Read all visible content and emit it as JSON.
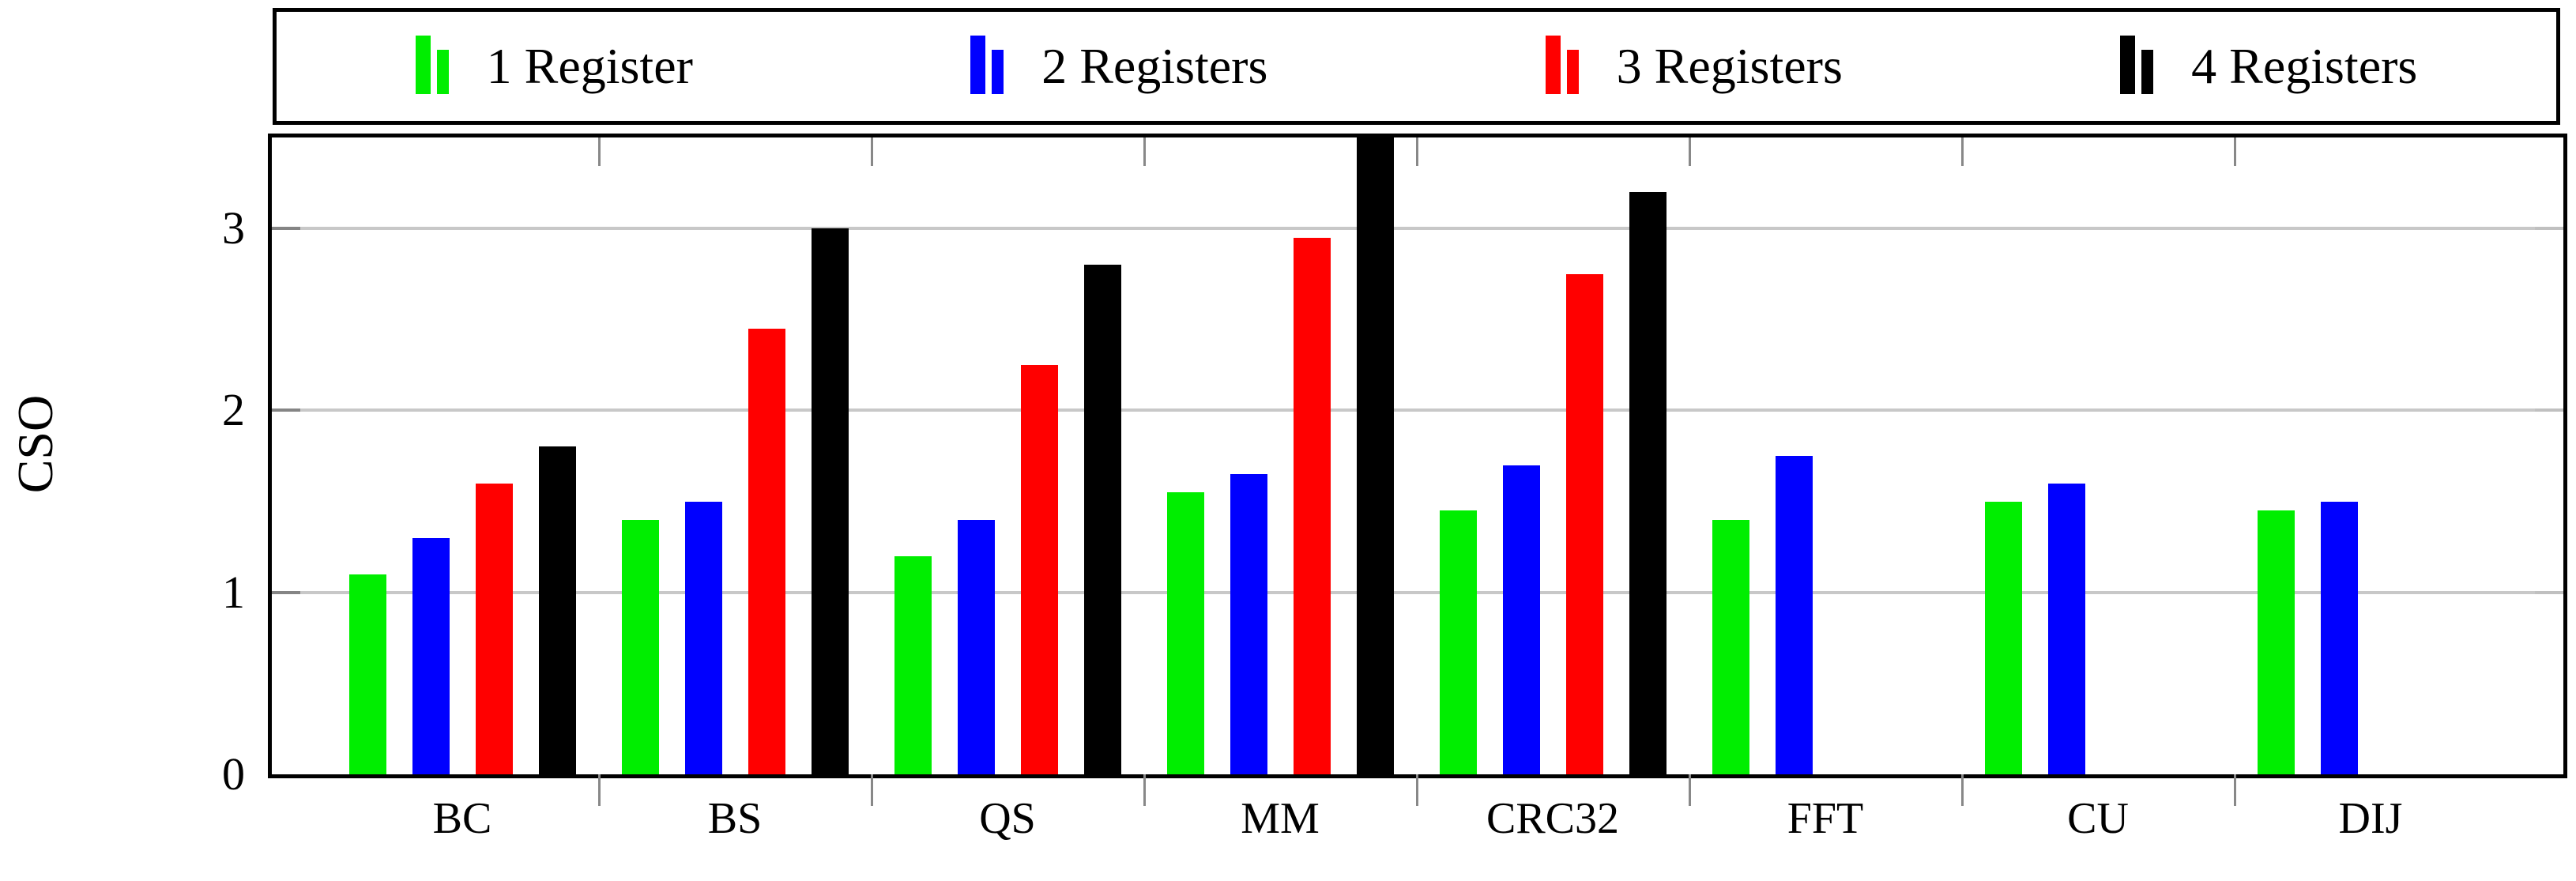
{
  "chart_data": {
    "type": "bar",
    "title": "",
    "ylabel": "CSO",
    "xlabel": "",
    "categories": [
      "BC",
      "BS",
      "QS",
      "MM",
      "CRC32",
      "FFT",
      "CU",
      "DIJ"
    ],
    "series": [
      {
        "name": "1 Register",
        "color": "#00ee00",
        "values": [
          1.1,
          1.4,
          1.2,
          1.55,
          1.45,
          1.4,
          1.5,
          1.45
        ]
      },
      {
        "name": "2 Registers",
        "color": "#0000ff",
        "values": [
          1.3,
          1.5,
          1.4,
          1.65,
          1.7,
          1.75,
          1.6,
          1.5
        ]
      },
      {
        "name": "3 Registers",
        "color": "#ff0000",
        "values": [
          1.6,
          2.45,
          2.25,
          2.95,
          2.75,
          null,
          null,
          null
        ]
      },
      {
        "name": "4 Registers",
        "color": "#000000",
        "values": [
          1.8,
          3.0,
          2.8,
          3.5,
          3.2,
          null,
          null,
          null
        ]
      }
    ],
    "yticks": [
      0,
      1,
      2,
      3
    ],
    "ylim": [
      0,
      3.5
    ],
    "grid": "horizontal-gridlines-at-1-2-3",
    "gridline_color": "#c8c8c8",
    "legend_position": "top",
    "frame_color": "#000000",
    "background_color": "#ffffff"
  }
}
